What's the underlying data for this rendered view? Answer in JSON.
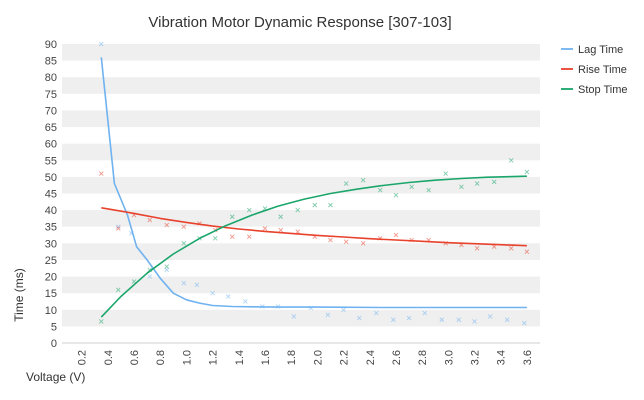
{
  "chart_data": {
    "type": "line",
    "title": "Vibration Motor Dynamic Response [307-103]",
    "xlabel": "Voltage (V)",
    "ylabel": "Time (ms)",
    "xlim": [
      0.05,
      3.7
    ],
    "ylim": [
      0,
      90
    ],
    "x_ticks": [
      "0.2",
      "0.4",
      "0.6",
      "0.8",
      "1.0",
      "1.2",
      "1.4",
      "1.6",
      "1.8",
      "2.0",
      "2.2",
      "2.4",
      "2.6",
      "2.8",
      "3.0",
      "3.2",
      "3.4",
      "3.6"
    ],
    "y_ticks": [
      "0",
      "5",
      "10",
      "15",
      "20",
      "25",
      "30",
      "35",
      "40",
      "45",
      "50",
      "55",
      "60",
      "65",
      "70",
      "75",
      "80",
      "85",
      "90"
    ],
    "grid": "horizontal-bands",
    "legend_position": "top-right",
    "series": [
      {
        "name": "Lag Time",
        "color": "#6fb2f0",
        "line": {
          "x": [
            0.35,
            0.45,
            0.55,
            0.62,
            0.7,
            0.8,
            0.9,
            1.0,
            1.1,
            1.2,
            1.35,
            1.5,
            1.7,
            2.0,
            2.5,
            3.0,
            3.6
          ],
          "y": [
            86,
            48,
            38.5,
            29,
            25,
            19.5,
            15,
            13,
            12,
            11.3,
            11,
            10.9,
            10.8,
            10.8,
            10.7,
            10.7,
            10.7
          ]
        },
        "points": {
          "x": [
            0.35,
            0.48,
            0.58,
            0.72,
            0.85,
            0.98,
            1.08,
            1.2,
            1.32,
            1.45,
            1.58,
            1.7,
            1.82,
            1.95,
            2.08,
            2.2,
            2.32,
            2.45,
            2.58,
            2.7,
            2.82,
            2.95,
            3.08,
            3.2,
            3.32,
            3.45,
            3.58
          ],
          "y": [
            90,
            35,
            33,
            20,
            22,
            18,
            17.5,
            15,
            14,
            12.5,
            11,
            11,
            8,
            10.5,
            8.5,
            10,
            7.5,
            9,
            7,
            7.5,
            9,
            7,
            7,
            6.5,
            8,
            7,
            6
          ]
        }
      },
      {
        "name": "Rise Time",
        "color": "#e8412c",
        "line": {
          "x": [
            0.35,
            0.6,
            0.8,
            1.0,
            1.2,
            1.4,
            1.6,
            1.8,
            2.0,
            2.2,
            2.4,
            2.6,
            2.8,
            3.0,
            3.2,
            3.4,
            3.6
          ],
          "y": [
            40.7,
            39,
            37.5,
            36.3,
            35.2,
            34.3,
            33.6,
            33,
            32.4,
            31.9,
            31.4,
            31,
            30.6,
            30.2,
            29.9,
            29.6,
            29.3
          ]
        },
        "points": {
          "x": [
            0.35,
            0.48,
            0.6,
            0.72,
            0.85,
            0.98,
            1.1,
            1.22,
            1.35,
            1.48,
            1.6,
            1.72,
            1.85,
            1.98,
            2.1,
            2.22,
            2.35,
            2.48,
            2.6,
            2.72,
            2.85,
            2.98,
            3.1,
            3.22,
            3.35,
            3.48,
            3.6
          ],
          "y": [
            51,
            34.5,
            38.5,
            37,
            35.5,
            35,
            36,
            34,
            32,
            32,
            34.5,
            34,
            33.5,
            32,
            31,
            30.5,
            30,
            31.5,
            32.5,
            31,
            31,
            30,
            29.5,
            28.5,
            29,
            28.5,
            27.5
          ]
        }
      },
      {
        "name": "Stop Time",
        "color": "#1aa56b",
        "line": {
          "x": [
            0.35,
            0.5,
            0.7,
            0.9,
            1.1,
            1.3,
            1.5,
            1.7,
            1.9,
            2.1,
            2.3,
            2.5,
            2.7,
            2.9,
            3.1,
            3.3,
            3.6
          ],
          "y": [
            7.8,
            14,
            21,
            26.8,
            31.5,
            35.3,
            38.5,
            41.2,
            43.3,
            45,
            46.3,
            47.4,
            48.3,
            49,
            49.5,
            49.9,
            50.2
          ]
        },
        "points": {
          "x": [
            0.35,
            0.48,
            0.6,
            0.72,
            0.85,
            0.98,
            1.1,
            1.22,
            1.35,
            1.48,
            1.6,
            1.72,
            1.85,
            1.98,
            2.1,
            2.22,
            2.35,
            2.48,
            2.6,
            2.72,
            2.85,
            2.98,
            3.1,
            3.22,
            3.35,
            3.48,
            3.6
          ],
          "y": [
            6.5,
            16,
            18.5,
            22,
            23,
            30,
            31.5,
            31.5,
            38,
            40,
            40.5,
            38,
            40,
            41.5,
            41.5,
            48,
            49,
            46,
            44.5,
            47,
            46,
            51,
            47,
            48,
            48.5,
            55,
            51.5
          ]
        }
      }
    ]
  }
}
